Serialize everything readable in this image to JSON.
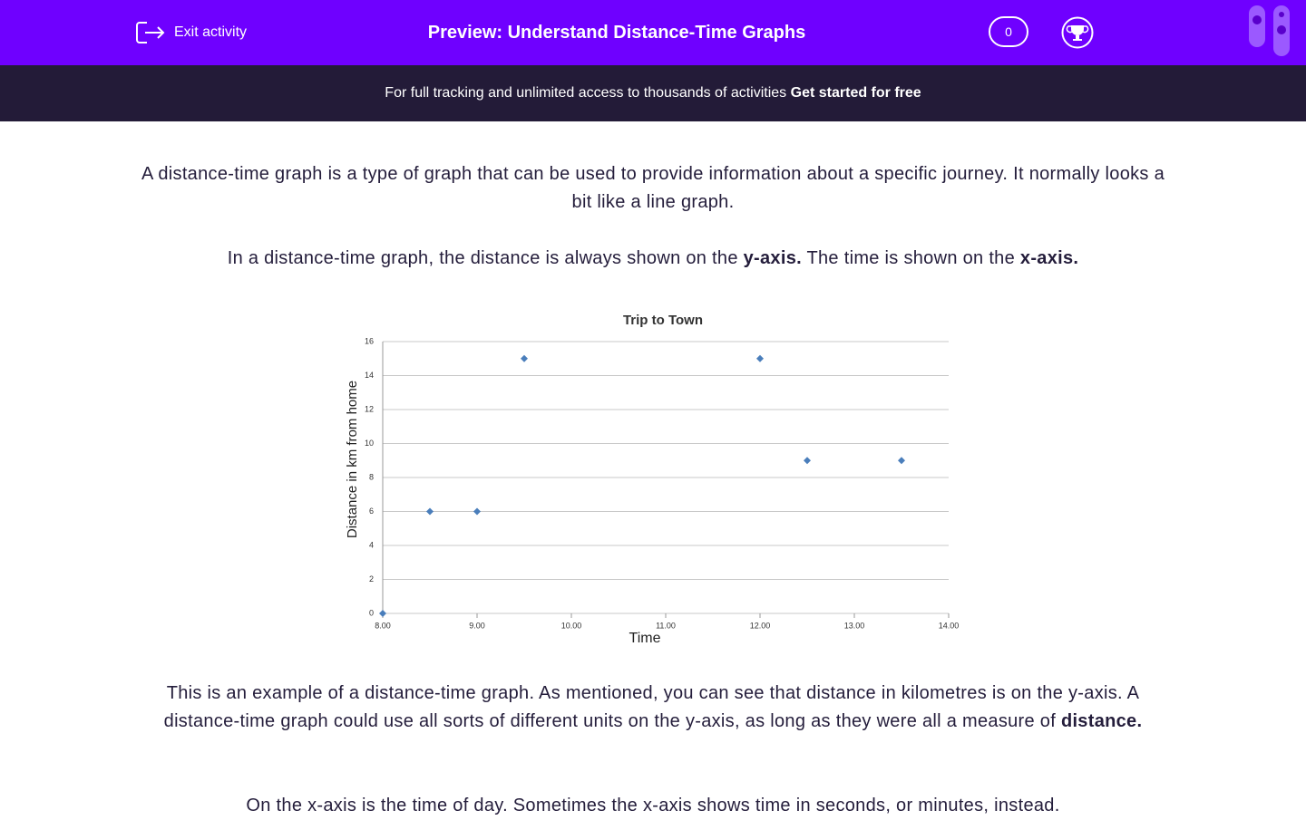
{
  "header": {
    "exit": "Exit activity",
    "title": "Preview: Understand Distance-Time Graphs",
    "score": "0"
  },
  "banner": {
    "text": "For full tracking and unlimited access to thousands of activities",
    "link": "Get started for free"
  },
  "paragraphs": [
    [
      {
        "text": "A distance-time graph is a type of graph that can be used to provide information about a specific journey. It normally looks a bit like a line graph.",
        "bold": false
      }
    ],
    [
      {
        "text": "In a distance-time graph, the distance is always shown on the ",
        "bold": false
      },
      {
        "text": "y-axis.",
        "bold": true
      },
      {
        "text": " The time is shown on the ",
        "bold": false
      },
      {
        "text": "x-axis.",
        "bold": true
      }
    ],
    [
      {
        "text": "This is an example of a distance-time graph. As mentioned, you can see that distance in kilometres is on the y-axis. A distance-time graph could use all sorts of different units on the y-axis, as long as they were all a measure of ",
        "bold": false
      },
      {
        "text": "distance.",
        "bold": true
      }
    ],
    [
      {
        "text": "On the x-axis is the time of day. Sometimes the x-axis shows time in seconds, or minutes, instead.",
        "bold": false
      }
    ]
  ],
  "chart_data": {
    "type": "line",
    "title": "Trip to Town",
    "x_label": "Time",
    "y_label": "Distance in km from home",
    "x": [
      8,
      8.5,
      9,
      9.5,
      12,
      12.5,
      13.5
    ],
    "values": [
      0,
      6,
      6,
      15,
      15,
      9,
      9
    ],
    "color": "#4a7ebb",
    "xlim": [
      8,
      14
    ],
    "ylim": [
      0,
      16
    ],
    "xticks": [
      {
        "value": 8,
        "label": "8.00"
      },
      {
        "value": 9,
        "label": "9.00"
      },
      {
        "value": 10,
        "label": "10.00"
      },
      {
        "value": 11,
        "label": "11.00"
      },
      {
        "value": 12,
        "label": "12.00"
      },
      {
        "value": 13,
        "label": "13.00"
      },
      {
        "value": 14,
        "label": "14.00"
      }
    ],
    "yticks": [
      0,
      2,
      4,
      6,
      8,
      10,
      12,
      14,
      16
    ],
    "grid": true
  }
}
